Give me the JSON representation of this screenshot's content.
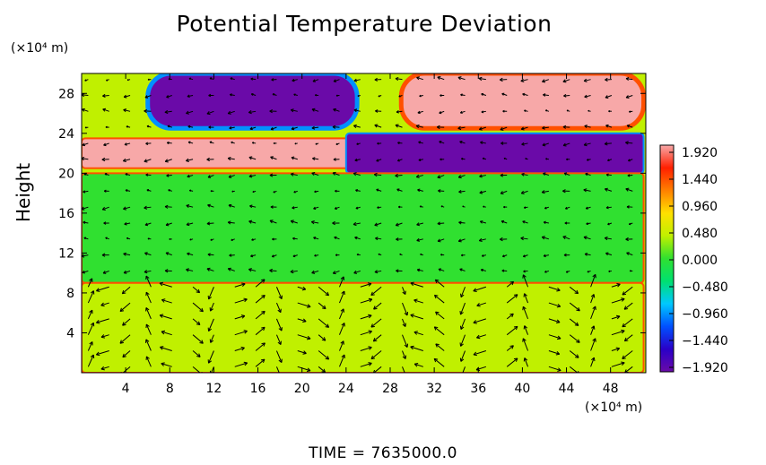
{
  "chart_data": {
    "type": "heatmap",
    "title": "Potential Temperature Deviation",
    "ylabel": "Height",
    "xunit": "(×10⁴ m)",
    "yunit": "(×10⁴ m)",
    "x_ticks": [
      4,
      8,
      12,
      16,
      20,
      24,
      28,
      32,
      36,
      40,
      44,
      48
    ],
    "y_ticks": [
      4,
      8,
      12,
      16,
      20,
      24,
      28
    ],
    "xlim": [
      0,
      51.2
    ],
    "ylim": [
      0,
      30
    ],
    "colorbar": {
      "ticks": [
        "1.920",
        "1.440",
        "0.960",
        "0.480",
        "0.000",
        "−0.480",
        "−0.960",
        "−1.440",
        "−1.920"
      ],
      "range": [
        -1.92,
        1.92
      ],
      "colors": [
        "#6a0aa8",
        "#2a00c8",
        "#0050ff",
        "#00c8ff",
        "#00e070",
        "#30e030",
        "#c0f000",
        "#ffe000",
        "#ff8000",
        "#ff2000",
        "#f7a8a8"
      ]
    },
    "regions": [
      {
        "label": "cold pool upper left",
        "value": -1.92,
        "x": [
          6,
          25
        ],
        "y": [
          24.5,
          30
        ]
      },
      {
        "label": "warm pool upper right",
        "value": 1.92,
        "x": [
          29,
          51
        ],
        "y": [
          24.5,
          30
        ]
      },
      {
        "label": "warm layer",
        "value": 1.92,
        "x": [
          0,
          51
        ],
        "y": [
          20.5,
          23.5
        ]
      },
      {
        "label": "cold layer",
        "value": -1.92,
        "x": [
          24,
          51
        ],
        "y": [
          20,
          24
        ]
      },
      {
        "label": "mid-level mixed band",
        "value": 0.1,
        "x": [
          0,
          51
        ],
        "y": [
          9,
          20
        ]
      },
      {
        "label": "lower layer",
        "value": 0.2,
        "x": [
          0,
          51
        ],
        "y": [
          0,
          9
        ]
      }
    ],
    "vectors": "wind field arrows over the domain"
  },
  "footer": {
    "time_label": "TIME  =  7635000.0"
  }
}
